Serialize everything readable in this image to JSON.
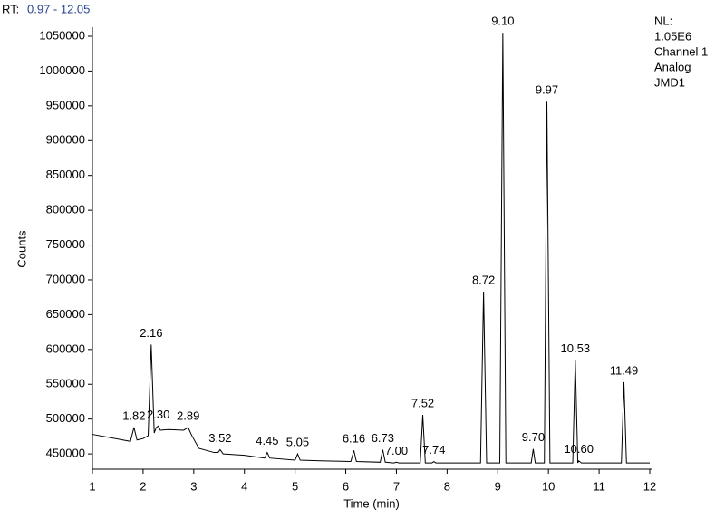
{
  "chart_data": {
    "type": "line",
    "header_label": "RT:",
    "header_range": "0.97 - 12.05",
    "info": [
      "NL:",
      "1.05E6",
      "Channel 1",
      "Analog",
      "JMD1"
    ],
    "xlabel": "Time (min)",
    "ylabel": "Counts",
    "xlim": [
      1,
      12
    ],
    "xticks": [
      1,
      2,
      3,
      4,
      5,
      6,
      7,
      8,
      9,
      10,
      11,
      12
    ],
    "ylim": [
      428000,
      1063000
    ],
    "yticks": [
      450000,
      500000,
      550000,
      600000,
      650000,
      700000,
      750000,
      800000,
      850000,
      900000,
      950000,
      1000000,
      1050000
    ],
    "color": "#000000",
    "x": [
      1.0,
      1.3,
      1.6,
      1.75,
      1.82,
      1.88,
      2.0,
      2.1,
      2.16,
      2.22,
      2.26,
      2.3,
      2.34,
      2.5,
      2.8,
      2.89,
      2.95,
      3.1,
      3.4,
      3.48,
      3.52,
      3.58,
      4.0,
      4.4,
      4.45,
      4.5,
      5.0,
      5.05,
      5.1,
      5.5,
      6.1,
      6.16,
      6.21,
      6.68,
      6.73,
      6.78,
      6.95,
      7.0,
      7.05,
      7.47,
      7.52,
      7.57,
      7.7,
      7.74,
      7.78,
      8.66,
      8.72,
      8.78,
      9.04,
      9.1,
      9.16,
      9.66,
      9.7,
      9.74,
      9.92,
      9.97,
      10.03,
      10.48,
      10.53,
      10.58,
      10.6,
      10.65,
      11.44,
      11.49,
      11.54,
      12.0
    ],
    "values": [
      478000,
      474000,
      470000,
      468000,
      488000,
      470000,
      472000,
      476000,
      607000,
      480000,
      488000,
      490000,
      484000,
      485000,
      484000,
      488000,
      478000,
      458000,
      452000,
      452000,
      456000,
      450000,
      448000,
      444000,
      452000,
      444000,
      441000,
      450000,
      441000,
      440000,
      439000,
      455000,
      439000,
      438000,
      456000,
      438000,
      437000,
      438000,
      437000,
      437000,
      506000,
      437000,
      437000,
      439000,
      437000,
      437000,
      683000,
      437000,
      437000,
      1055000,
      437000,
      437000,
      457000,
      437000,
      437000,
      956000,
      437000,
      437000,
      585000,
      437000,
      440000,
      437000,
      437000,
      553000,
      437000,
      437000
    ],
    "peaks": {
      "rt": [
        1.82,
        2.16,
        2.3,
        2.89,
        3.52,
        4.45,
        5.05,
        6.16,
        6.73,
        7.0,
        7.52,
        7.74,
        8.72,
        9.1,
        9.7,
        9.97,
        10.53,
        10.6,
        11.49
      ],
      "height": [
        488000,
        607000,
        490000,
        488000,
        456000,
        452000,
        450000,
        455000,
        456000,
        438000,
        506000,
        439000,
        683000,
        1055000,
        457000,
        956000,
        585000,
        440000,
        553000
      ],
      "labels": [
        "1.82",
        "2.16",
        "2.30",
        "2.89",
        "3.52",
        "4.45",
        "5.05",
        "6.16",
        "6.73",
        "7.00",
        "7.52",
        "7.74",
        "8.72",
        "9.10",
        "9.70",
        "9.97",
        "10.53",
        "10.60",
        "11.49"
      ]
    }
  }
}
